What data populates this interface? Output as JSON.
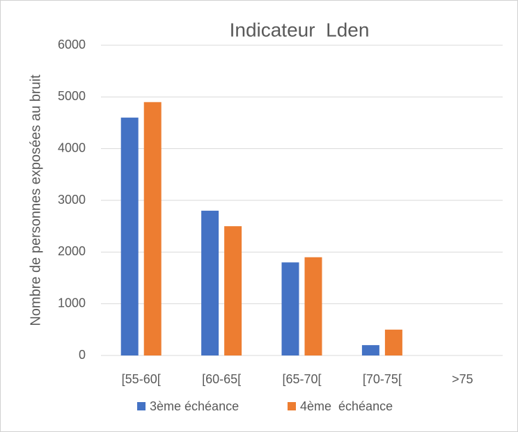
{
  "chart_data": {
    "type": "bar",
    "title": "Indicateur  Lden",
    "y_label": "Nombre de personnes exposées au bruit",
    "categories": [
      "[55-60[",
      "[60-65[",
      "[65-70[",
      "[70-75[",
      ">75"
    ],
    "series": [
      {
        "name": "3ème échéance",
        "color": "#4472c4",
        "values": [
          4600,
          2800,
          1800,
          200,
          0
        ]
      },
      {
        "name": "4ème  échéance",
        "color": "#ed7d31",
        "values": [
          4900,
          2500,
          1900,
          500,
          0
        ]
      }
    ],
    "ylim": [
      0,
      6000
    ],
    "yticks": [
      0,
      1000,
      2000,
      3000,
      4000,
      5000,
      6000
    ],
    "grid": true,
    "legend": "bottom"
  }
}
